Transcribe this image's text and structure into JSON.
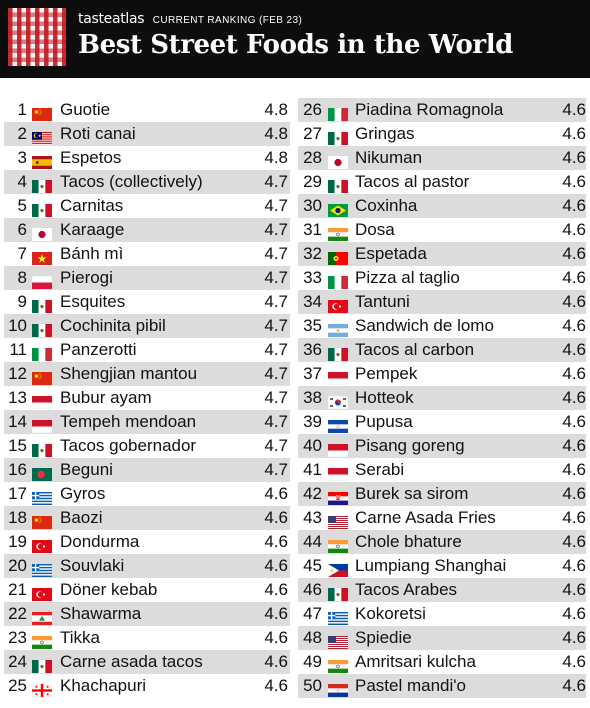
{
  "header": {
    "brand": "tasteatlas",
    "ranking_label": "CURRENT RANKING (FEB 23)",
    "title": "Best Street Foods in the World"
  },
  "rankings": [
    {
      "rank": "1",
      "name": "Guotie",
      "score": "4.8",
      "flag": "china"
    },
    {
      "rank": "2",
      "name": "Roti canai",
      "score": "4.8",
      "flag": "malaysia"
    },
    {
      "rank": "3",
      "name": "Espetos",
      "score": "4.8",
      "flag": "spain"
    },
    {
      "rank": "4",
      "name": "Tacos (collectively)",
      "score": "4.7",
      "flag": "mexico"
    },
    {
      "rank": "5",
      "name": "Carnitas",
      "score": "4.7",
      "flag": "mexico"
    },
    {
      "rank": "6",
      "name": "Karaage",
      "score": "4.7",
      "flag": "japan"
    },
    {
      "rank": "7",
      "name": "Bánh mì",
      "score": "4.7",
      "flag": "vietnam"
    },
    {
      "rank": "8",
      "name": "Pierogi",
      "score": "4.7",
      "flag": "poland"
    },
    {
      "rank": "9",
      "name": "Esquites",
      "score": "4.7",
      "flag": "mexico"
    },
    {
      "rank": "10",
      "name": "Cochinita pibil",
      "score": "4.7",
      "flag": "mexico"
    },
    {
      "rank": "11",
      "name": "Panzerotti",
      "score": "4.7",
      "flag": "italy"
    },
    {
      "rank": "12",
      "name": "Shengjian mantou",
      "score": "4.7",
      "flag": "china"
    },
    {
      "rank": "13",
      "name": "Bubur ayam",
      "score": "4.7",
      "flag": "indonesia"
    },
    {
      "rank": "14",
      "name": "Tempeh mendoan",
      "score": "4.7",
      "flag": "indonesia"
    },
    {
      "rank": "15",
      "name": "Tacos gobernador",
      "score": "4.7",
      "flag": "mexico"
    },
    {
      "rank": "16",
      "name": "Beguni",
      "score": "4.7",
      "flag": "bangladesh"
    },
    {
      "rank": "17",
      "name": "Gyros",
      "score": "4.6",
      "flag": "greece"
    },
    {
      "rank": "18",
      "name": "Baozi",
      "score": "4.6",
      "flag": "china"
    },
    {
      "rank": "19",
      "name": "Dondurma",
      "score": "4.6",
      "flag": "turkey"
    },
    {
      "rank": "20",
      "name": "Souvlaki",
      "score": "4.6",
      "flag": "greece"
    },
    {
      "rank": "21",
      "name": "Döner kebab",
      "score": "4.6",
      "flag": "turkey"
    },
    {
      "rank": "22",
      "name": "Shawarma",
      "score": "4.6",
      "flag": "lebanon"
    },
    {
      "rank": "23",
      "name": "Tikka",
      "score": "4.6",
      "flag": "india"
    },
    {
      "rank": "24",
      "name": "Carne asada tacos",
      "score": "4.6",
      "flag": "mexico"
    },
    {
      "rank": "25",
      "name": "Khachapuri",
      "score": "4.6",
      "flag": "georgia"
    },
    {
      "rank": "26",
      "name": "Piadina Romagnola",
      "score": "4.6",
      "flag": "italy"
    },
    {
      "rank": "27",
      "name": "Gringas",
      "score": "4.6",
      "flag": "mexico"
    },
    {
      "rank": "28",
      "name": "Nikuman",
      "score": "4.6",
      "flag": "japan"
    },
    {
      "rank": "29",
      "name": "Tacos al pastor",
      "score": "4.6",
      "flag": "mexico"
    },
    {
      "rank": "30",
      "name": "Coxinha",
      "score": "4.6",
      "flag": "brazil"
    },
    {
      "rank": "31",
      "name": "Dosa",
      "score": "4.6",
      "flag": "india"
    },
    {
      "rank": "32",
      "name": "Espetada",
      "score": "4.6",
      "flag": "portugal"
    },
    {
      "rank": "33",
      "name": "Pizza al taglio",
      "score": "4.6",
      "flag": "italy"
    },
    {
      "rank": "34",
      "name": "Tantuni",
      "score": "4.6",
      "flag": "turkey"
    },
    {
      "rank": "35",
      "name": "Sandwich de lomo",
      "score": "4.6",
      "flag": "argentina"
    },
    {
      "rank": "36",
      "name": "Tacos al carbon",
      "score": "4.6",
      "flag": "mexico"
    },
    {
      "rank": "37",
      "name": "Pempek",
      "score": "4.6",
      "flag": "indonesia"
    },
    {
      "rank": "38",
      "name": "Hotteok",
      "score": "4.6",
      "flag": "south-korea"
    },
    {
      "rank": "39",
      "name": "Pupusa",
      "score": "4.6",
      "flag": "el-salvador"
    },
    {
      "rank": "40",
      "name": "Pisang goreng",
      "score": "4.6",
      "flag": "indonesia"
    },
    {
      "rank": "41",
      "name": "Serabi",
      "score": "4.6",
      "flag": "indonesia"
    },
    {
      "rank": "42",
      "name": "Burek sa sirom",
      "score": "4.6",
      "flag": "croatia"
    },
    {
      "rank": "43",
      "name": "Carne Asada Fries",
      "score": "4.6",
      "flag": "usa"
    },
    {
      "rank": "44",
      "name": "Chole bhature",
      "score": "4.6",
      "flag": "india"
    },
    {
      "rank": "45",
      "name": "Lumpiang Shanghai",
      "score": "4.6",
      "flag": "philippines"
    },
    {
      "rank": "46",
      "name": "Tacos Arabes",
      "score": "4.6",
      "flag": "mexico"
    },
    {
      "rank": "47",
      "name": "Kokoretsi",
      "score": "4.6",
      "flag": "greece"
    },
    {
      "rank": "48",
      "name": "Spiedie",
      "score": "4.6",
      "flag": "usa"
    },
    {
      "rank": "49",
      "name": "Amritsari kulcha",
      "score": "4.6",
      "flag": "india"
    },
    {
      "rank": "50",
      "name": "Pastel mandi'o",
      "score": "4.6",
      "flag": "paraguay"
    }
  ]
}
